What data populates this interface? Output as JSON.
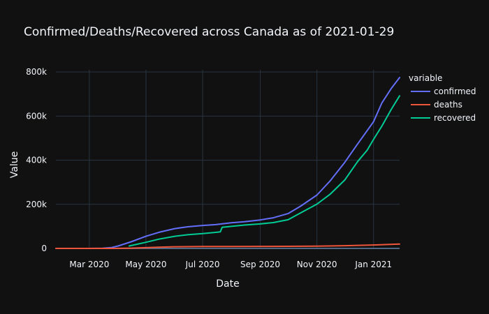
{
  "chart_data": {
    "type": "line",
    "title": "Confirmed/Deaths/Recovered across Canada as of 2021-01-29",
    "xlabel": "Date",
    "ylabel": "Value",
    "legend_title": "variable",
    "legend_position": "top-right",
    "grid": true,
    "xlim": [
      "2020-01-25",
      "2021-01-29"
    ],
    "ylim": [
      0,
      810000
    ],
    "x_ticks": [
      {
        "date": "2020-03-01",
        "label": "Mar 2020"
      },
      {
        "date": "2020-05-01",
        "label": "May 2020"
      },
      {
        "date": "2020-07-01",
        "label": "Jul 2020"
      },
      {
        "date": "2020-09-01",
        "label": "Sep 2020"
      },
      {
        "date": "2020-11-01",
        "label": "Nov 2020"
      },
      {
        "date": "2021-01-01",
        "label": "Jan 2021"
      }
    ],
    "y_ticks": [
      {
        "value": 0,
        "label": "0"
      },
      {
        "value": 200000,
        "label": "200k"
      },
      {
        "value": 400000,
        "label": "400k"
      },
      {
        "value": 600000,
        "label": "600k"
      },
      {
        "value": 800000,
        "label": "800k"
      }
    ],
    "series": [
      {
        "name": "confirmed",
        "color": "#636efa",
        "points": [
          [
            "2020-01-25",
            0
          ],
          [
            "2020-03-01",
            100
          ],
          [
            "2020-03-15",
            1000
          ],
          [
            "2020-03-25",
            4000
          ],
          [
            "2020-04-01",
            11000
          ],
          [
            "2020-04-15",
            30000
          ],
          [
            "2020-05-01",
            55000
          ],
          [
            "2020-05-15",
            73000
          ],
          [
            "2020-06-01",
            90000
          ],
          [
            "2020-06-15",
            98000
          ],
          [
            "2020-07-01",
            104000
          ],
          [
            "2020-07-15",
            108000
          ],
          [
            "2020-08-01",
            116000
          ],
          [
            "2020-08-15",
            121000
          ],
          [
            "2020-09-01",
            129000
          ],
          [
            "2020-09-15",
            139000
          ],
          [
            "2020-10-01",
            158000
          ],
          [
            "2020-10-15",
            193000
          ],
          [
            "2020-11-01",
            242000
          ],
          [
            "2020-11-15",
            305000
          ],
          [
            "2020-12-01",
            390000
          ],
          [
            "2020-12-15",
            475000
          ],
          [
            "2021-01-01",
            575000
          ],
          [
            "2021-01-10",
            660000
          ],
          [
            "2021-01-20",
            725000
          ],
          [
            "2021-01-29",
            775000
          ]
        ]
      },
      {
        "name": "deaths",
        "color": "#ef553b",
        "points": [
          [
            "2020-01-25",
            0
          ],
          [
            "2020-03-20",
            0
          ],
          [
            "2020-04-01",
            300
          ],
          [
            "2020-04-15",
            1200
          ],
          [
            "2020-05-01",
            3500
          ],
          [
            "2020-05-15",
            5500
          ],
          [
            "2020-06-01",
            7500
          ],
          [
            "2020-07-01",
            8700
          ],
          [
            "2020-08-01",
            9000
          ],
          [
            "2020-09-01",
            9200
          ],
          [
            "2020-10-01",
            9500
          ],
          [
            "2020-11-01",
            10400
          ],
          [
            "2020-12-01",
            12200
          ],
          [
            "2021-01-01",
            15600
          ],
          [
            "2021-01-29",
            19500
          ]
        ]
      },
      {
        "name": "recovered",
        "color": "#00cc96",
        "points": [
          [
            "2020-04-13",
            11000
          ],
          [
            "2020-05-01",
            28000
          ],
          [
            "2020-05-15",
            42000
          ],
          [
            "2020-06-01",
            55000
          ],
          [
            "2020-06-15",
            62000
          ],
          [
            "2020-07-01",
            67000
          ],
          [
            "2020-07-16",
            73000
          ],
          [
            "2020-07-20",
            75000
          ],
          [
            "2020-07-22",
            96000
          ],
          [
            "2020-08-01",
            100000
          ],
          [
            "2020-08-15",
            106000
          ],
          [
            "2020-09-01",
            111000
          ],
          [
            "2020-09-15",
            117000
          ],
          [
            "2020-10-01",
            130000
          ],
          [
            "2020-10-15",
            162000
          ],
          [
            "2020-11-01",
            201000
          ],
          [
            "2020-11-15",
            245000
          ],
          [
            "2020-12-01",
            310000
          ],
          [
            "2020-12-15",
            395000
          ],
          [
            "2020-12-25",
            445000
          ],
          [
            "2021-01-01",
            495000
          ],
          [
            "2021-01-10",
            555000
          ],
          [
            "2021-01-20",
            630000
          ],
          [
            "2021-01-29",
            692000
          ]
        ]
      }
    ]
  }
}
